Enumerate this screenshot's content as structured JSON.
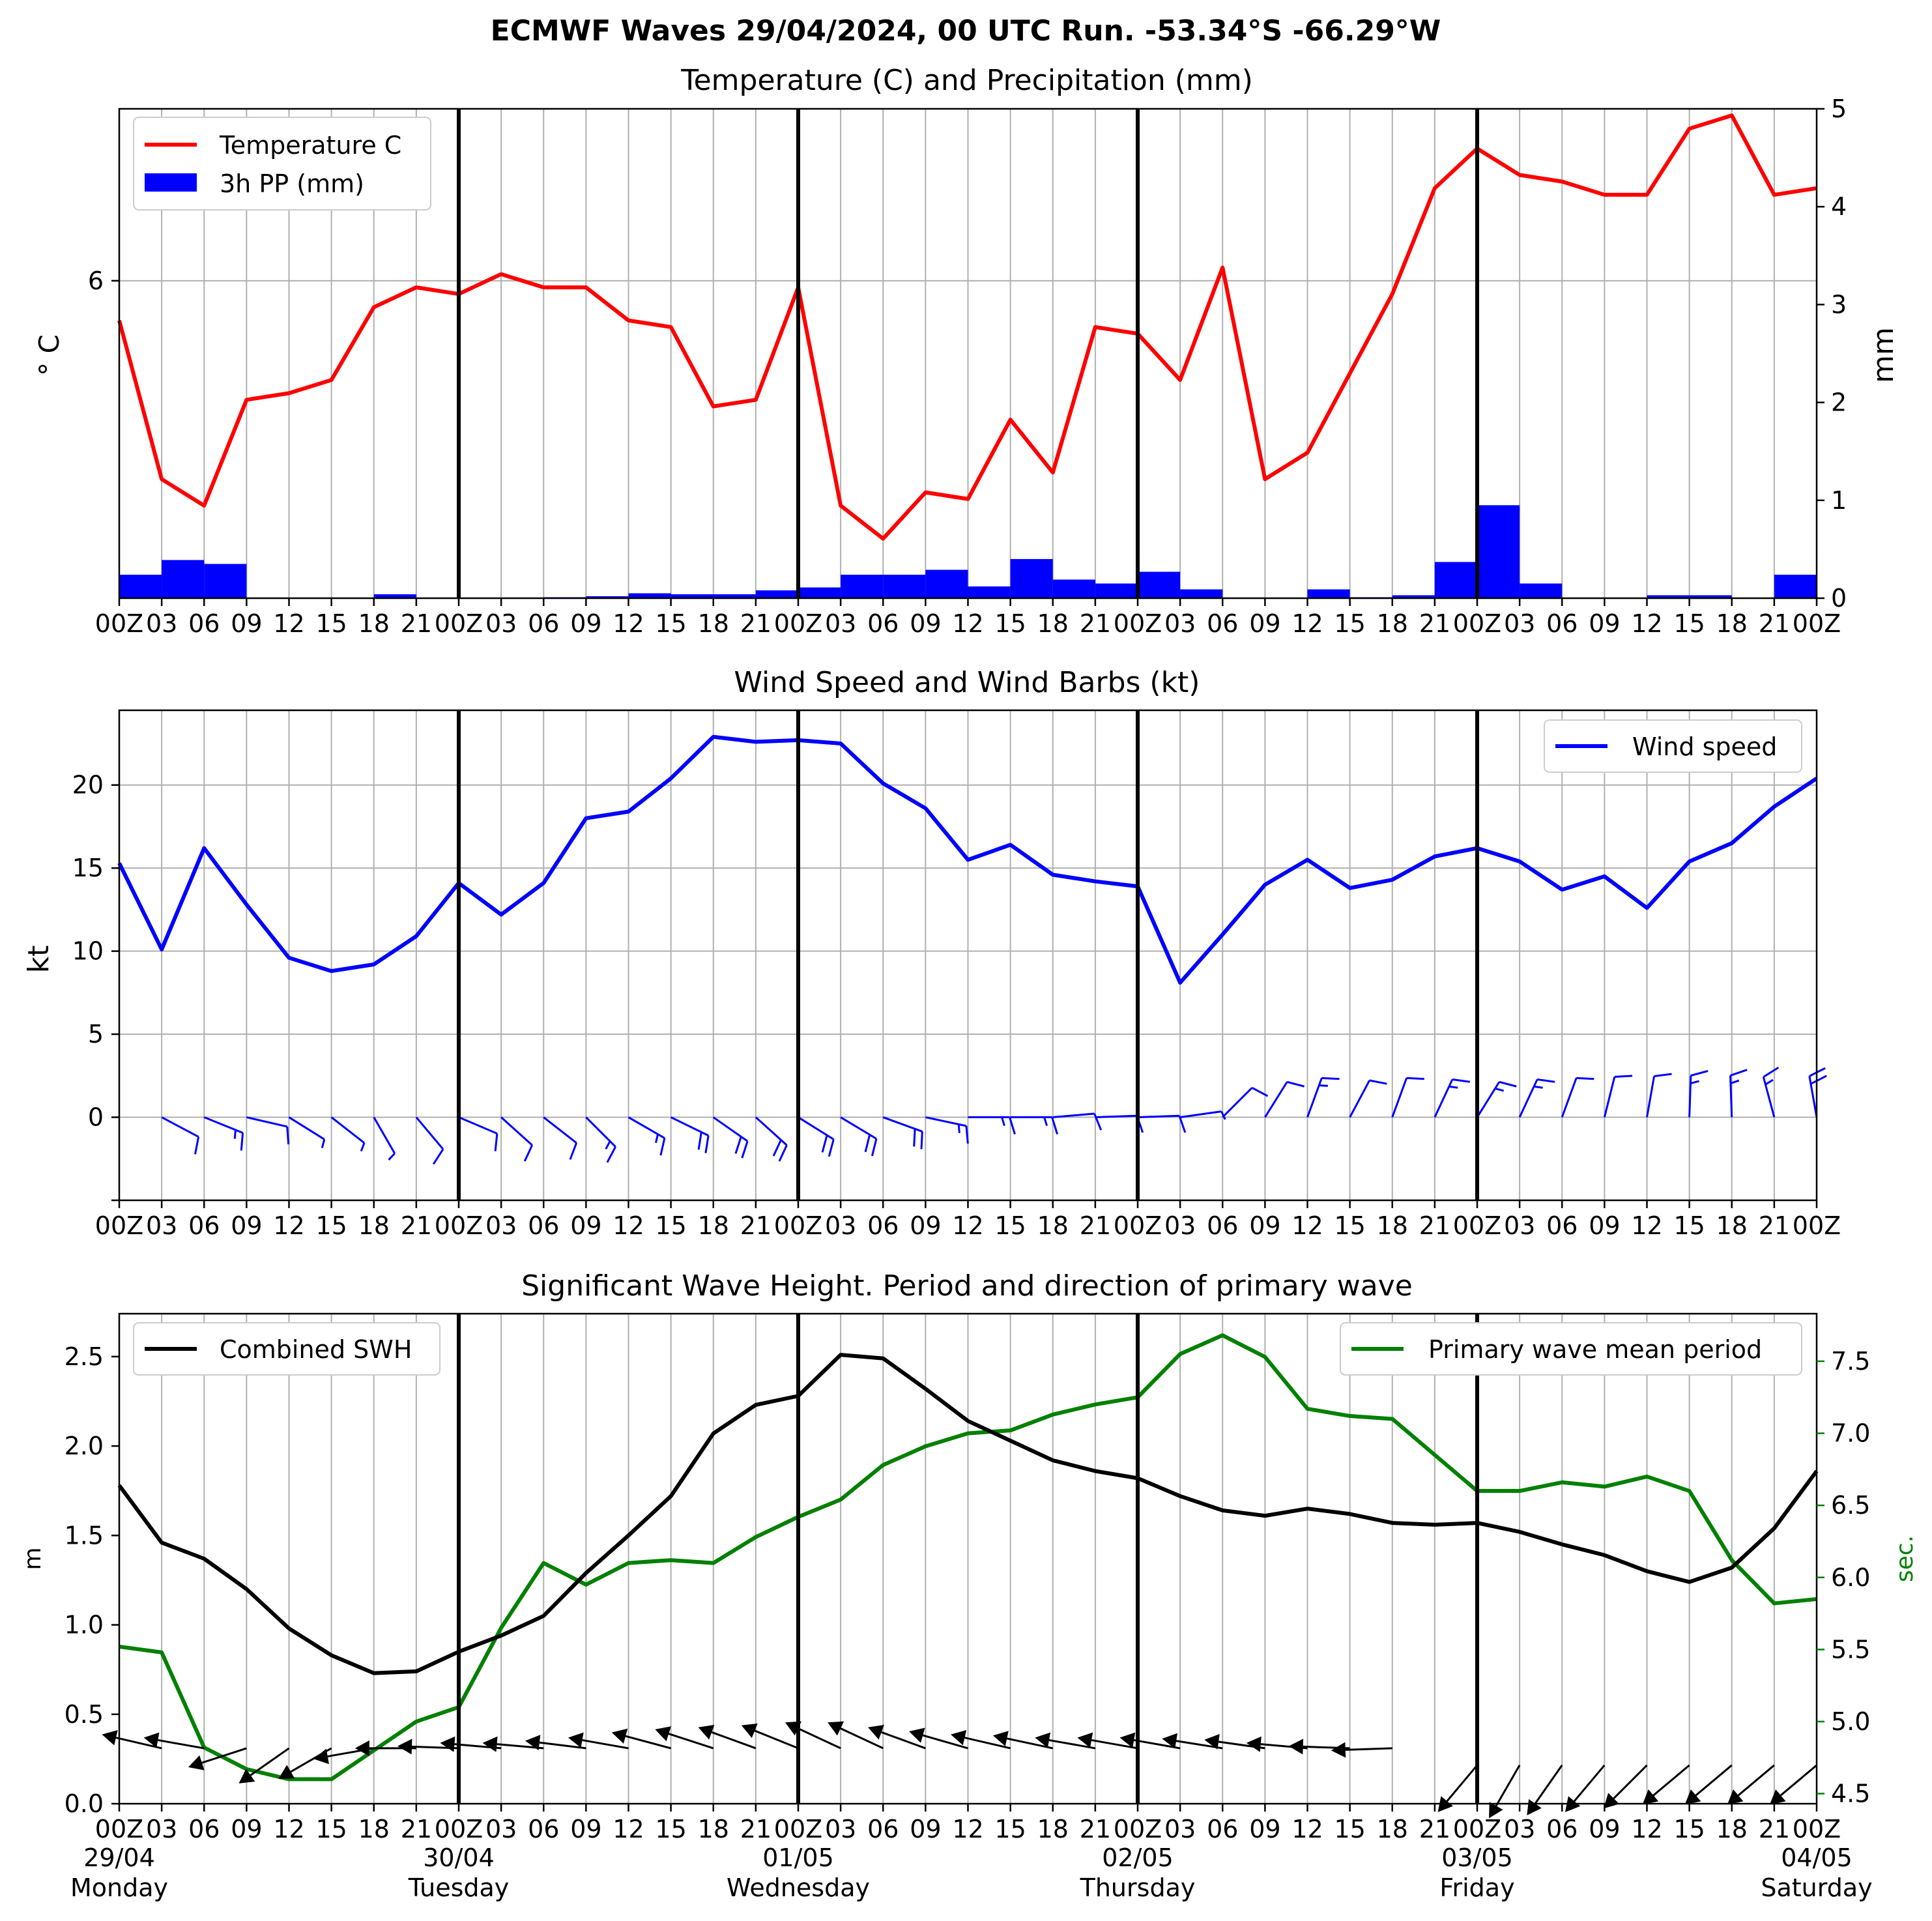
{
  "suptitle": "ECMWF Waves 29/04/2024, 00 UTC Run. -53.34°S -66.29°W",
  "time_tick_labels": [
    "00Z",
    "03",
    "06",
    "09",
    "12",
    "15",
    "18",
    "21",
    "00Z",
    "03",
    "06",
    "09",
    "12",
    "15",
    "18",
    "21",
    "00Z",
    "03",
    "06",
    "09",
    "12",
    "15",
    "18",
    "21",
    "00Z",
    "03",
    "06",
    "09",
    "12",
    "15",
    "18",
    "21",
    "00Z",
    "03",
    "06",
    "09",
    "12",
    "15",
    "18",
    "21",
    "00Z"
  ],
  "bottom_tick_labels": [
    "00Z",
    "03",
    "06",
    "09",
    "12",
    "15",
    "18",
    "21",
    "00Z",
    "03",
    "06",
    "09",
    "12",
    "15",
    "18",
    "21",
    "00Z",
    "03",
    "06",
    "09",
    "12",
    "15",
    "18",
    "21",
    "00Z",
    "03",
    "06",
    "09",
    "12",
    "15",
    "18",
    "21",
    "00Z",
    "03",
    "06",
    "09",
    "12",
    "15",
    "18",
    "21",
    "00Z"
  ],
  "day_labels": [
    {
      "date": "29/04",
      "day": "Monday"
    },
    {
      "date": "30/04",
      "day": "Tuesday"
    },
    {
      "date": "01/05",
      "day": "Wednesday"
    },
    {
      "date": "02/05",
      "day": "Thursday"
    },
    {
      "date": "03/05",
      "day": "Friday"
    },
    {
      "date": "04/05",
      "day": "Saturday"
    }
  ],
  "colors": {
    "temperature": "#ff0000",
    "precip": "#0000ff",
    "wind": "#0000ff",
    "swh": "#000000",
    "period": "#008000",
    "grid": "#b0b0b0"
  },
  "chart_data": [
    {
      "type": "line",
      "title": "Temperature (C) and Precipitation (mm)",
      "ylabel": "° C",
      "y2label": "mm",
      "yticks": [
        6
      ],
      "y2ticks": [
        0,
        1,
        2,
        3,
        4,
        5
      ],
      "ylim": [
        1.2,
        8.6
      ],
      "y2lim": [
        0,
        5
      ],
      "legend": [
        "Temperature C",
        "3h PP (mm)"
      ],
      "legend_position": "upper left",
      "x_step_hours": 3,
      "series": [
        {
          "name": "Temperature C",
          "axis": "left",
          "values": [
            5.4,
            3.0,
            2.6,
            4.2,
            4.3,
            4.5,
            5.6,
            5.9,
            5.8,
            6.1,
            5.9,
            5.9,
            5.4,
            5.3,
            4.1,
            4.2,
            5.9,
            2.6,
            2.1,
            2.8,
            2.7,
            3.9,
            3.1,
            5.3,
            5.2,
            4.5,
            6.2,
            3.0,
            3.4,
            4.6,
            5.8,
            7.4,
            8.0,
            7.6,
            7.5,
            7.3,
            7.3,
            8.3,
            8.5,
            7.3,
            7.4
          ]
        },
        {
          "name": "3h PP (mm)",
          "axis": "right",
          "type": "bar",
          "values": [
            0.24,
            0.39,
            0.35,
            0.0,
            0.0,
            0.0,
            0.04,
            0.0,
            0.0,
            0.0,
            0.01,
            0.02,
            0.05,
            0.04,
            0.04,
            0.08,
            0.11,
            0.24,
            0.24,
            0.29,
            0.12,
            0.4,
            0.19,
            0.15,
            0.27,
            0.09,
            0.0,
            0.0,
            0.09,
            0.01,
            0.03,
            0.37,
            0.95,
            0.15,
            0.0,
            0.0,
            0.03,
            0.03,
            0.0,
            0.24
          ]
        }
      ]
    },
    {
      "type": "line",
      "title": "Wind Speed and Wind Barbs (kt)",
      "ylabel": "kt",
      "yticks": [
        0,
        5,
        10,
        15,
        20
      ],
      "ylim": [
        -5,
        24.5
      ],
      "legend": [
        "Wind speed"
      ],
      "legend_position": "upper right",
      "series": [
        {
          "name": "Wind speed",
          "values": [
            15.3,
            10.1,
            16.2,
            12.8,
            9.6,
            8.8,
            9.2,
            10.9,
            14.1,
            12.2,
            14.1,
            18.0,
            18.4,
            20.4,
            22.9,
            22.6,
            22.7,
            22.5,
            20.1,
            18.6,
            15.5,
            16.4,
            14.6,
            14.2,
            13.9,
            8.1,
            11.0,
            14.0,
            15.5,
            13.8,
            14.3,
            15.7,
            16.2,
            15.4,
            13.7,
            14.5,
            12.6,
            15.4,
            16.5,
            18.7,
            20.4
          ]
        }
      ]
    },
    {
      "type": "line",
      "title": "Significant Wave Height. Period and direction of primary wave",
      "ylabel": "m",
      "y2label": "sec.",
      "yticks": [
        0.0,
        0.5,
        1.0,
        1.5,
        2.0,
        2.5
      ],
      "y2ticks": [
        4.5,
        5.0,
        5.5,
        6.0,
        6.5,
        7.0,
        7.5
      ],
      "ylim": [
        0.0,
        2.74
      ],
      "y2lim": [
        4.43,
        7.83
      ],
      "legend_left": [
        "Combined SWH"
      ],
      "legend_right": [
        "Primary wave mean period"
      ],
      "legend_position": "upper left / upper right",
      "series": [
        {
          "name": "Combined SWH",
          "axis": "left",
          "values": [
            1.78,
            1.46,
            1.37,
            1.2,
            0.98,
            0.83,
            0.73,
            0.74,
            0.85,
            0.94,
            1.05,
            1.29,
            1.5,
            1.72,
            2.07,
            2.23,
            2.28,
            2.51,
            2.49,
            2.32,
            2.14,
            2.03,
            1.92,
            1.86,
            1.82,
            1.72,
            1.64,
            1.61,
            1.65,
            1.62,
            1.57,
            1.56,
            1.57,
            1.52,
            1.45,
            1.39,
            1.3,
            1.24,
            1.32,
            1.54,
            1.86
          ]
        },
        {
          "name": "Primary wave mean period",
          "axis": "right",
          "values": [
            5.52,
            5.48,
            4.82,
            4.67,
            4.6,
            4.6,
            4.8,
            5.0,
            5.1,
            5.65,
            6.1,
            5.95,
            6.1,
            6.12,
            6.1,
            6.28,
            6.42,
            6.54,
            6.78,
            6.91,
            7.0,
            7.02,
            7.13,
            7.2,
            7.25,
            7.55,
            7.68,
            7.53,
            7.17,
            7.12,
            7.1,
            6.85,
            6.6,
            6.6,
            6.66,
            6.63,
            6.7,
            6.6,
            6.12,
            5.82,
            5.85
          ]
        }
      ]
    }
  ],
  "panels": [
    {
      "title": "Temperature (C) and Precipitation (mm)",
      "ylabel": "° C",
      "y2label": "mm",
      "legend": [
        "Temperature C",
        "3h PP (mm)"
      ]
    },
    {
      "title": "Wind Speed and Wind Barbs (kt)",
      "ylabel": "kt",
      "legend": [
        "Wind speed"
      ]
    },
    {
      "title": "Significant Wave Height. Period and direction of primary wave",
      "ylabel": "m",
      "y2label": "sec.",
      "legend_left": [
        "Combined SWH"
      ],
      "legend_right": [
        "Primary wave mean period"
      ]
    }
  ],
  "wind_direction_deg": [
    null,
    298,
    292,
    283,
    302,
    308,
    330,
    320,
    293,
    312,
    308,
    315,
    300,
    296,
    305,
    312,
    302,
    301,
    290,
    282,
    270,
    270,
    265,
    268,
    268,
    262,
    225,
    212,
    200,
    208,
    200,
    205,
    212,
    205,
    200,
    194,
    190,
    182,
    178,
    165,
    170
  ],
  "wave_direction_deg": [
    null,
    103,
    100,
    72,
    55,
    60,
    80,
    90,
    92,
    95,
    95,
    97,
    100,
    105,
    108,
    110,
    112,
    115,
    115,
    110,
    106,
    103,
    102,
    100,
    100,
    100,
    99,
    98,
    95,
    92,
    88,
    null,
    40,
    30,
    35,
    40,
    45,
    50,
    50,
    50,
    50
  ]
}
